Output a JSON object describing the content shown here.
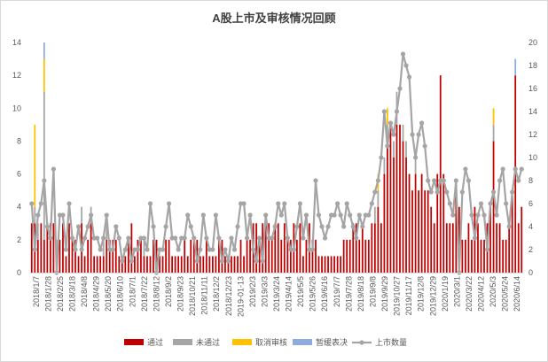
{
  "chart_data": {
    "type": "bar",
    "title": "A股上市及审核情况回顾",
    "stacked": true,
    "y_left": {
      "min": 0,
      "max": 14,
      "step": 2,
      "ticks": [
        "0",
        "2",
        "4",
        "6",
        "8",
        "10",
        "12",
        "14"
      ]
    },
    "y_right": {
      "min": 0,
      "max": 20,
      "step": 2,
      "ticks": [
        "0",
        "2",
        "4",
        "6",
        "8",
        "10",
        "12",
        "14",
        "16",
        "18",
        "20"
      ]
    },
    "x_tick_labels": [
      "2018/1/7",
      "2018/1/28",
      "2018/2/25",
      "2018/3/18",
      "2018/4/8",
      "2018/4/29",
      "2018/5/20",
      "2018/6/10",
      "2018/7/1",
      "2018/7/22",
      "2018/8/12",
      "2018/9/2",
      "2018/9/23",
      "2018/10/21",
      "2018/11/11",
      "2018/12/2",
      "2018/12/23",
      "2019-01-13",
      "2019/2/3",
      "2019/3/3",
      "2019/3/24",
      "2019/4/14",
      "2019/5/5",
      "2019/5/26",
      "2019/6/16",
      "2019/7/7",
      "2019/7/28",
      "2019/8/18",
      "2019/9/8",
      "2019/9/29",
      "2019/10/27",
      "2019/11/17",
      "2019/12/8",
      "2019/12/29",
      "2020/1/19",
      "2020/3/1",
      "2020/3/22",
      "2020/4/12",
      "2020/5/3",
      "2020/5/24",
      "2020/6/14"
    ],
    "legend_position": "bottom",
    "grid": false,
    "series": [
      {
        "name": "通过",
        "type": "bar",
        "axis": "left",
        "color": "#c00000",
        "values": [
          3,
          3,
          2,
          3,
          2,
          3,
          3,
          3,
          1,
          2,
          3,
          1,
          3,
          2,
          2,
          1,
          3,
          1,
          2,
          3,
          1,
          1,
          1,
          1,
          2,
          2,
          2,
          2,
          1,
          1,
          1,
          2,
          3,
          1,
          2,
          2,
          1,
          1,
          1,
          2,
          2,
          1,
          1,
          2,
          2,
          1,
          1,
          1,
          1,
          2,
          1,
          2,
          2,
          2,
          1,
          1,
          2,
          1,
          1,
          1,
          2,
          2,
          1,
          1,
          1,
          1,
          1,
          2,
          1,
          2,
          2,
          3,
          3,
          2,
          3,
          3,
          3,
          2,
          3,
          3,
          2,
          3,
          2,
          2,
          3,
          2,
          3,
          1,
          2,
          3,
          2,
          2,
          1,
          1,
          1,
          1,
          1,
          1,
          1,
          1,
          2,
          2,
          2,
          3,
          3,
          2,
          3,
          2,
          2,
          3,
          3,
          4,
          3,
          6,
          8,
          9,
          7,
          9,
          9,
          8,
          7,
          6,
          5,
          6,
          5,
          6,
          5,
          5,
          4,
          3,
          6,
          12,
          6,
          3,
          3,
          3,
          5,
          4,
          2,
          2,
          3,
          2,
          4,
          3,
          2,
          2,
          3,
          4,
          8,
          3,
          3,
          2,
          2,
          3,
          5,
          12,
          3,
          4
        ]
      },
      {
        "name": "未通过",
        "type": "bar",
        "axis": "left",
        "color": "#a5a5a5",
        "values": [
          0,
          1,
          1,
          0,
          9,
          0,
          0,
          0,
          1,
          0,
          0,
          0,
          0,
          0,
          0,
          0,
          1,
          0,
          0,
          1,
          0,
          0,
          0,
          1,
          1,
          0,
          0,
          0,
          0,
          0,
          0,
          0,
          0,
          0,
          0,
          0,
          1,
          0,
          0,
          0,
          0,
          0,
          0,
          0,
          0,
          0,
          0,
          0,
          0,
          0,
          0,
          0,
          0,
          0,
          0,
          0,
          0,
          0,
          0,
          0,
          0,
          0,
          0,
          0,
          0,
          0,
          0,
          0,
          0,
          0,
          0,
          0,
          0,
          0,
          0,
          0,
          0,
          0,
          0,
          0,
          0,
          0,
          0,
          0,
          0,
          0,
          0,
          0,
          0,
          0,
          0,
          0,
          0,
          0,
          0,
          0,
          0,
          0,
          0,
          0,
          0,
          0,
          0,
          0,
          0,
          0,
          0,
          0,
          0,
          0,
          1,
          1,
          0,
          1,
          1,
          0,
          1,
          2,
          0,
          1,
          1,
          0,
          0,
          1,
          0,
          0,
          0,
          0,
          0,
          0,
          0,
          0,
          0,
          0,
          0,
          0,
          0,
          0,
          0,
          0,
          0,
          0,
          0,
          0,
          0,
          0,
          0,
          0,
          1,
          0,
          0,
          0,
          0,
          0,
          0,
          0,
          0,
          0
        ]
      },
      {
        "name": "取消审核",
        "type": "bar",
        "axis": "left",
        "color": "#ffc000",
        "values": [
          0,
          5,
          0,
          0,
          2,
          0,
          0,
          0,
          0,
          0,
          0,
          0,
          0,
          0,
          0,
          0,
          0,
          0,
          0,
          0,
          0,
          0,
          0,
          0,
          0,
          0,
          0,
          0,
          0,
          0,
          0,
          0,
          0,
          0,
          0,
          0,
          0,
          0,
          0,
          0,
          0,
          0,
          0,
          0,
          0,
          0,
          0,
          0,
          0,
          0,
          0,
          0,
          0,
          0,
          0,
          0,
          0,
          0,
          0,
          0,
          0,
          0,
          0,
          0,
          0,
          0,
          0,
          0,
          0,
          0,
          0,
          0,
          0,
          0,
          0,
          0,
          0,
          0,
          0,
          0,
          0,
          0,
          0,
          0,
          0,
          0,
          0,
          0,
          0,
          0,
          0,
          0,
          0,
          0,
          0,
          0,
          0,
          0,
          0,
          0,
          0,
          0,
          0,
          0,
          0,
          0,
          0,
          0,
          0,
          0,
          0,
          1,
          0,
          0,
          1,
          0,
          0,
          0,
          0,
          0,
          0,
          0,
          0,
          0,
          0,
          0,
          0,
          0,
          0,
          0,
          0,
          0,
          0,
          0,
          0,
          0,
          0,
          0,
          0,
          0,
          0,
          0,
          0,
          0,
          0,
          0,
          0,
          0,
          1,
          0,
          0,
          0,
          0,
          0,
          0,
          0,
          0,
          0
        ]
      },
      {
        "name": "暂缓表决",
        "type": "bar",
        "axis": "left",
        "color": "#8faadc",
        "values": [
          0,
          0,
          0,
          0,
          1,
          0,
          0,
          0,
          0,
          0,
          0,
          0,
          0,
          0,
          0,
          0,
          0,
          0,
          0,
          0,
          0,
          0,
          0,
          0,
          0,
          0,
          0,
          0,
          0,
          0,
          0,
          0,
          0,
          0,
          0,
          0,
          0,
          0,
          0,
          0,
          0,
          0,
          0,
          0,
          0,
          0,
          0,
          0,
          0,
          0,
          0,
          0,
          0,
          0,
          0,
          0,
          0,
          0,
          0,
          0,
          0,
          0,
          0,
          0,
          0,
          0,
          0,
          0,
          0,
          0,
          0,
          0,
          0,
          0,
          0,
          0,
          0,
          0,
          0,
          0,
          0,
          0,
          0,
          0,
          0,
          0,
          0,
          0,
          0,
          0,
          0,
          0,
          0,
          0,
          0,
          0,
          0,
          0,
          0,
          0,
          0,
          0,
          0,
          0,
          0,
          0,
          0,
          0,
          0,
          0,
          0,
          0,
          0,
          0,
          0,
          0,
          0,
          0,
          0,
          0,
          0,
          0,
          0,
          0,
          0,
          0,
          0,
          0,
          0,
          0,
          0,
          0,
          0,
          0,
          0,
          0,
          0,
          0,
          0,
          0,
          0,
          0,
          0,
          0,
          0,
          0,
          0,
          0,
          0,
          0,
          0,
          0,
          0,
          0,
          0,
          1,
          0,
          0
        ]
      },
      {
        "name": "上市数量",
        "type": "line",
        "axis": "right",
        "color": "#a5a5a5",
        "values": [
          6,
          2,
          5,
          6,
          8,
          4,
          3,
          9,
          0,
          5,
          5,
          2,
          6,
          3,
          2,
          4,
          2,
          3,
          4,
          5,
          3,
          3,
          2,
          3,
          5,
          2,
          2,
          4,
          3,
          1,
          2,
          3,
          1,
          2,
          2,
          3,
          3,
          2,
          6,
          4,
          0,
          2,
          2,
          4,
          6,
          3,
          3,
          2,
          3,
          3,
          5,
          4,
          3,
          1,
          2,
          5,
          3,
          2,
          2,
          5,
          3,
          1,
          2,
          1,
          3,
          2,
          4,
          6,
          6,
          3,
          5,
          2,
          1,
          3,
          1,
          5,
          3,
          3,
          4,
          6,
          5,
          6,
          3,
          2,
          2,
          4,
          6,
          3,
          5,
          2,
          2,
          8,
          5,
          4,
          3,
          4,
          5,
          5,
          6,
          5,
          4,
          6,
          5,
          4,
          3,
          5,
          4,
          5,
          5,
          6,
          7,
          8,
          10,
          14,
          11,
          13,
          12,
          14,
          16,
          19,
          18,
          17,
          12,
          10,
          12,
          13,
          11,
          8,
          7,
          8,
          7,
          8,
          8,
          7,
          6,
          5,
          8,
          0,
          7,
          9,
          8,
          5,
          3,
          5,
          6,
          5,
          2,
          6,
          7,
          5,
          8,
          9,
          6,
          4,
          7,
          9,
          8,
          9
        ]
      }
    ]
  }
}
